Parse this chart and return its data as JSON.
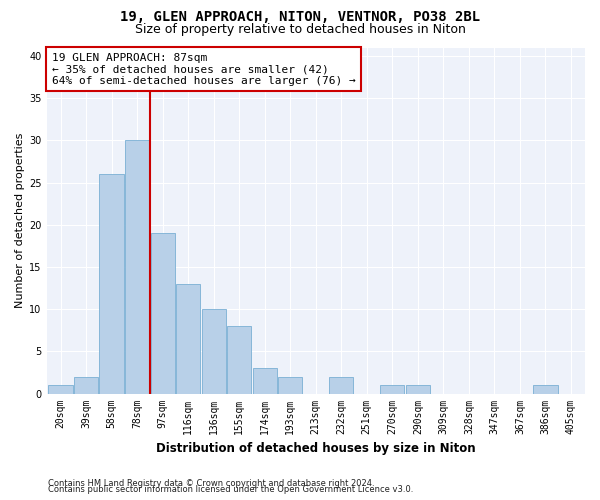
{
  "title1": "19, GLEN APPROACH, NITON, VENTNOR, PO38 2BL",
  "title2": "Size of property relative to detached houses in Niton",
  "xlabel": "Distribution of detached houses by size in Niton",
  "ylabel": "Number of detached properties",
  "categories": [
    "20sqm",
    "39sqm",
    "58sqm",
    "78sqm",
    "97sqm",
    "116sqm",
    "136sqm",
    "155sqm",
    "174sqm",
    "193sqm",
    "213sqm",
    "232sqm",
    "251sqm",
    "270sqm",
    "290sqm",
    "309sqm",
    "328sqm",
    "347sqm",
    "367sqm",
    "386sqm",
    "405sqm"
  ],
  "values": [
    1,
    2,
    26,
    30,
    19,
    13,
    10,
    8,
    3,
    2,
    0,
    2,
    0,
    1,
    1,
    0,
    0,
    0,
    0,
    1,
    0
  ],
  "bar_color": "#b8d0e8",
  "bar_edge_color": "#7aafd4",
  "red_line_x": 3.5,
  "annotation_title": "19 GLEN APPROACH: 87sqm",
  "annotation_line1": "← 35% of detached houses are smaller (42)",
  "annotation_line2": "64% of semi-detached houses are larger (76) →",
  "footnote1": "Contains HM Land Registry data © Crown copyright and database right 2024.",
  "footnote2": "Contains public sector information licensed under the Open Government Licence v3.0.",
  "ylim": [
    0,
    41
  ],
  "yticks": [
    0,
    5,
    10,
    15,
    20,
    25,
    30,
    35,
    40
  ],
  "bg_color": "#eef2fa",
  "box_color": "#cc0000",
  "title_fontsize": 10,
  "subtitle_fontsize": 9,
  "axis_label_fontsize": 8.5,
  "ylabel_fontsize": 8,
  "tick_fontsize": 7,
  "annotation_fontsize": 8,
  "footnote_fontsize": 6
}
